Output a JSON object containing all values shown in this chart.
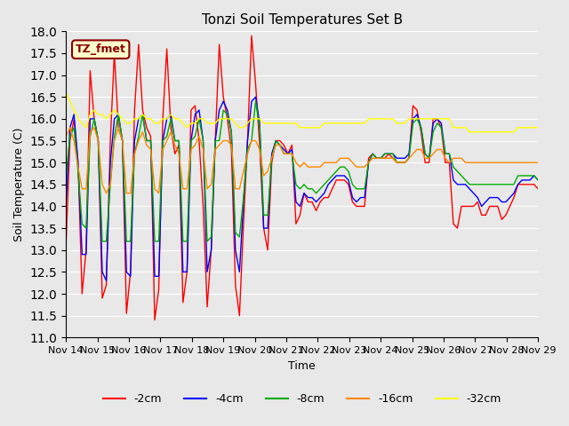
{
  "title": "Tonzi Soil Temperatures Set B",
  "xlabel": "Time",
  "ylabel": "Soil Temperature (C)",
  "ylim": [
    11.0,
    18.0
  ],
  "yticks": [
    11.0,
    11.5,
    12.0,
    12.5,
    13.0,
    13.5,
    14.0,
    14.5,
    15.0,
    15.5,
    16.0,
    16.5,
    17.0,
    17.5,
    18.0
  ],
  "xtick_labels": [
    "Nov 14",
    "Nov 15",
    "Nov 16",
    "Nov 17",
    "Nov 18",
    "Nov 19",
    "Nov 20",
    "Nov 21",
    "Nov 22",
    "Nov 23",
    "Nov 24",
    "Nov 25",
    "Nov 26",
    "Nov 27",
    "Nov 28",
    "Nov 29"
  ],
  "colors": {
    "-2cm": "#ff0000",
    "-4cm": "#0000ff",
    "-8cm": "#00aa00",
    "-16cm": "#ff8800",
    "-32cm": "#ffff00"
  },
  "legend_label": "TZ_fmet",
  "bg_color": "#e8e8e8",
  "plot_bg_color": "#e8e8e8",
  "series": {
    "-2cm": [
      13.1,
      15.5,
      16.0,
      15.0,
      12.0,
      13.0,
      17.1,
      16.0,
      15.5,
      11.9,
      12.2,
      15.5,
      17.5,
      15.8,
      15.5,
      11.55,
      12.5,
      16.2,
      17.7,
      16.2,
      15.8,
      15.6,
      11.4,
      12.1,
      16.0,
      17.6,
      15.8,
      15.2,
      15.4,
      11.8,
      12.5,
      16.2,
      16.3,
      15.5,
      14.0,
      11.7,
      13.0,
      15.5,
      17.7,
      16.5,
      16.0,
      15.3,
      12.2,
      11.5,
      13.6,
      15.5,
      17.9,
      16.8,
      15.4,
      13.5,
      13.0,
      15.0,
      15.5,
      15.5,
      15.4,
      15.2,
      15.4,
      13.6,
      13.8,
      14.3,
      14.1,
      14.1,
      13.9,
      14.1,
      14.2,
      14.2,
      14.4,
      14.6,
      14.6,
      14.6,
      14.5,
      14.1,
      14.0,
      14.0,
      14.0,
      15.1,
      15.2,
      15.1,
      15.1,
      15.1,
      15.2,
      15.1,
      15.0,
      15.0,
      15.0,
      15.1,
      16.3,
      16.2,
      15.7,
      15.0,
      15.0,
      16.0,
      16.0,
      15.8,
      15.0,
      15.0,
      13.6,
      13.5,
      14.0,
      14.0,
      14.0,
      14.0,
      14.1,
      13.8,
      13.8,
      14.0,
      14.0,
      14.0,
      13.7,
      13.8,
      14.0,
      14.2,
      14.5,
      14.5,
      14.5,
      14.5,
      14.5,
      14.4
    ],
    "-4cm": [
      14.0,
      15.8,
      16.1,
      15.0,
      12.9,
      12.9,
      16.0,
      16.0,
      15.5,
      12.5,
      12.3,
      15.0,
      16.0,
      16.1,
      15.5,
      12.5,
      12.4,
      15.5,
      16.0,
      16.1,
      15.5,
      15.5,
      12.4,
      12.4,
      15.5,
      16.0,
      16.1,
      15.5,
      15.5,
      12.5,
      12.5,
      15.5,
      16.1,
      16.2,
      15.5,
      12.5,
      13.0,
      15.5,
      16.2,
      16.4,
      16.2,
      15.7,
      13.0,
      12.5,
      14.1,
      15.5,
      16.4,
      16.5,
      15.9,
      13.5,
      13.5,
      15.2,
      15.5,
      15.4,
      15.3,
      15.2,
      15.3,
      14.1,
      14.0,
      14.3,
      14.2,
      14.2,
      14.1,
      14.2,
      14.3,
      14.5,
      14.6,
      14.7,
      14.7,
      14.7,
      14.6,
      14.2,
      14.1,
      14.2,
      14.2,
      15.0,
      15.2,
      15.1,
      15.1,
      15.2,
      15.2,
      15.2,
      15.1,
      15.1,
      15.1,
      15.2,
      16.0,
      16.1,
      15.8,
      15.2,
      15.1,
      15.9,
      16.0,
      15.9,
      15.2,
      15.2,
      14.6,
      14.5,
      14.5,
      14.5,
      14.4,
      14.3,
      14.2,
      14.0,
      14.1,
      14.2,
      14.2,
      14.2,
      14.1,
      14.1,
      14.2,
      14.3,
      14.5,
      14.6,
      14.6,
      14.6,
      14.7,
      14.6
    ],
    "-8cm": [
      14.7,
      15.6,
      15.8,
      14.8,
      13.6,
      13.5,
      15.6,
      16.0,
      15.5,
      13.2,
      13.2,
      14.5,
      15.6,
      16.1,
      15.5,
      13.2,
      13.2,
      15.2,
      15.6,
      16.1,
      15.5,
      15.5,
      13.2,
      13.2,
      15.5,
      15.6,
      16.0,
      15.5,
      15.5,
      13.2,
      13.2,
      15.5,
      15.6,
      16.0,
      15.5,
      13.2,
      13.3,
      15.5,
      15.5,
      16.2,
      16.1,
      15.7,
      13.4,
      13.3,
      14.2,
      15.3,
      15.5,
      16.4,
      15.8,
      13.8,
      13.8,
      15.1,
      15.5,
      15.4,
      15.2,
      15.2,
      15.2,
      14.5,
      14.4,
      14.5,
      14.4,
      14.4,
      14.3,
      14.4,
      14.5,
      14.6,
      14.7,
      14.8,
      14.9,
      14.9,
      14.8,
      14.5,
      14.4,
      14.4,
      14.4,
      15.0,
      15.2,
      15.1,
      15.1,
      15.2,
      15.2,
      15.2,
      15.0,
      15.0,
      15.0,
      15.1,
      15.9,
      16.0,
      15.8,
      15.2,
      15.1,
      15.7,
      15.9,
      15.8,
      15.2,
      15.2,
      14.9,
      14.8,
      14.7,
      14.6,
      14.5,
      14.5,
      14.5,
      14.5,
      14.5,
      14.5,
      14.5,
      14.5,
      14.5,
      14.5,
      14.5,
      14.5,
      14.7,
      14.7,
      14.7,
      14.7,
      14.7,
      14.6
    ],
    "-16cm": [
      15.6,
      15.8,
      15.5,
      14.9,
      14.4,
      14.4,
      15.7,
      15.8,
      15.5,
      14.5,
      14.3,
      14.5,
      15.5,
      15.8,
      15.5,
      14.3,
      14.3,
      15.2,
      15.5,
      15.7,
      15.4,
      15.3,
      14.4,
      14.3,
      15.3,
      15.5,
      15.7,
      15.4,
      15.2,
      14.4,
      14.4,
      15.3,
      15.4,
      15.6,
      15.3,
      14.4,
      14.5,
      15.3,
      15.4,
      15.5,
      15.5,
      15.4,
      14.4,
      14.4,
      14.8,
      15.2,
      15.5,
      15.5,
      15.3,
      14.7,
      14.8,
      15.1,
      15.4,
      15.4,
      15.2,
      15.2,
      15.2,
      15.0,
      14.9,
      15.0,
      14.9,
      14.9,
      14.9,
      14.9,
      15.0,
      15.0,
      15.0,
      15.0,
      15.1,
      15.1,
      15.1,
      15.0,
      14.9,
      14.9,
      14.9,
      15.0,
      15.1,
      15.1,
      15.1,
      15.1,
      15.1,
      15.1,
      15.0,
      15.0,
      15.0,
      15.1,
      15.2,
      15.3,
      15.3,
      15.1,
      15.1,
      15.2,
      15.3,
      15.3,
      15.1,
      15.0,
      15.1,
      15.1,
      15.1,
      15.0,
      15.0,
      15.0,
      15.0,
      15.0,
      15.0,
      15.0,
      15.0,
      15.0,
      15.0,
      15.0,
      15.0,
      15.0,
      15.0,
      15.0,
      15.0,
      15.0,
      15.0,
      15.0
    ],
    "-32cm": [
      16.6,
      16.4,
      16.2,
      16.0,
      15.9,
      15.8,
      16.1,
      16.2,
      16.1,
      16.1,
      16.0,
      16.1,
      16.2,
      16.1,
      16.0,
      15.9,
      15.9,
      16.0,
      16.0,
      16.1,
      16.0,
      16.0,
      15.9,
      15.9,
      16.0,
      16.0,
      16.1,
      16.0,
      16.0,
      15.9,
      15.8,
      15.9,
      15.9,
      16.0,
      16.0,
      15.9,
      15.9,
      15.9,
      16.0,
      16.0,
      16.0,
      16.0,
      15.9,
      15.8,
      15.8,
      15.9,
      16.0,
      16.0,
      16.0,
      15.9,
      15.9,
      15.9,
      15.9,
      15.9,
      15.9,
      15.9,
      15.9,
      15.9,
      15.8,
      15.8,
      15.8,
      15.8,
      15.8,
      15.8,
      15.9,
      15.9,
      15.9,
      15.9,
      15.9,
      15.9,
      15.9,
      15.9,
      15.9,
      15.9,
      15.9,
      16.0,
      16.0,
      16.0,
      16.0,
      16.0,
      16.0,
      16.0,
      15.9,
      15.9,
      15.9,
      16.0,
      16.0,
      16.0,
      16.0,
      16.0,
      16.0,
      16.0,
      16.0,
      16.0,
      16.0,
      16.0,
      15.8,
      15.8,
      15.8,
      15.8,
      15.7,
      15.7,
      15.7,
      15.7,
      15.7,
      15.7,
      15.7,
      15.7,
      15.7,
      15.7,
      15.7,
      15.7,
      15.8,
      15.8,
      15.8,
      15.8,
      15.8,
      15.8
    ]
  }
}
